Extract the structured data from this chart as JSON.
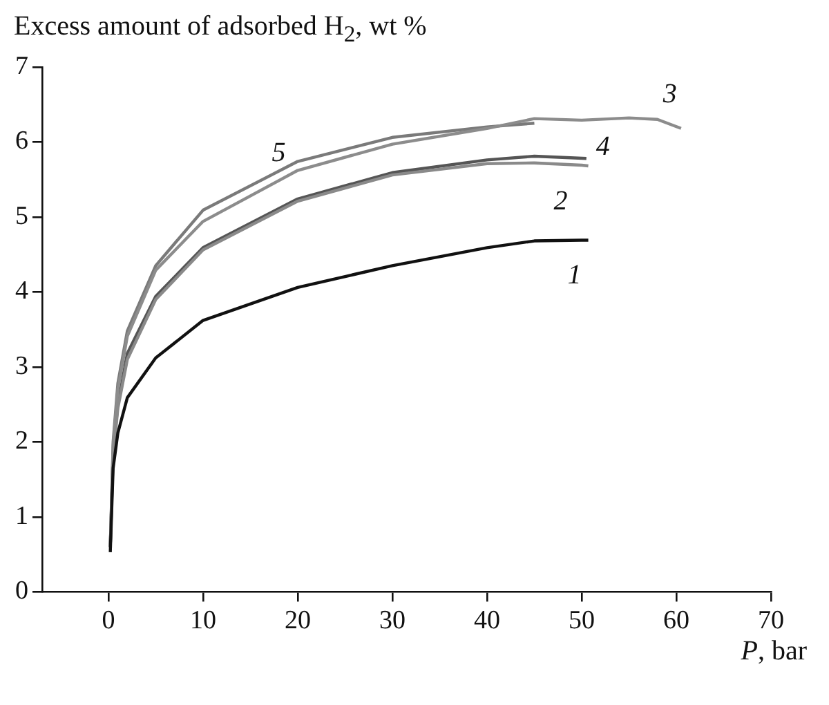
{
  "chart_data": {
    "type": "line",
    "ylabel": "Excess amount of adsorbed H$_{2}$, wt %",
    "xlabel": "P, bar",
    "xlim": [
      -7,
      70
    ],
    "xticks": [
      0,
      10,
      20,
      30,
      40,
      50,
      60,
      70
    ],
    "ylim": [
      0,
      7
    ],
    "yticks": [
      0,
      1,
      2,
      3,
      4,
      5,
      6,
      7
    ],
    "grid": false,
    "legend": false,
    "marker": "none",
    "line_style": "solid",
    "series": [
      {
        "name": "1",
        "color": "#111111",
        "x": [
          0.2,
          0.5,
          1,
          2,
          5,
          10,
          20,
          30,
          40,
          45,
          50,
          50.7
        ],
        "values": [
          0.53,
          1.65,
          2.12,
          2.59,
          3.12,
          3.62,
          4.06,
          4.35,
          4.59,
          4.68,
          4.69,
          4.69
        ]
      },
      {
        "name": "2",
        "color": "#8a8a8a",
        "x": [
          0.2,
          0.5,
          1,
          2,
          5,
          10,
          20,
          30,
          40,
          45,
          50,
          50.7
        ],
        "values": [
          0.6,
          1.8,
          2.45,
          3.1,
          3.9,
          4.56,
          5.21,
          5.56,
          5.71,
          5.72,
          5.69,
          5.68
        ]
      },
      {
        "name": "3",
        "color": "#8c8c8c",
        "x": [
          0.2,
          0.5,
          1,
          2,
          5,
          10,
          20,
          30,
          40,
          45,
          50,
          55,
          58,
          60.5
        ],
        "values": [
          0.6,
          1.94,
          2.7,
          3.41,
          4.29,
          4.94,
          5.62,
          5.97,
          6.18,
          6.31,
          6.29,
          6.32,
          6.3,
          6.18
        ]
      },
      {
        "name": "4",
        "color": "#555555",
        "x": [
          0.2,
          0.5,
          1,
          2,
          5,
          10,
          20,
          30,
          40,
          45,
          50.5
        ],
        "values": [
          0.6,
          1.85,
          2.5,
          3.18,
          3.94,
          4.59,
          5.24,
          5.59,
          5.76,
          5.81,
          5.78
        ]
      },
      {
        "name": "5",
        "color": "#7a7a7a",
        "x": [
          0.2,
          0.5,
          1,
          2,
          5,
          10,
          20,
          30,
          40,
          45
        ],
        "values": [
          0.6,
          2.0,
          2.78,
          3.48,
          4.35,
          5.09,
          5.74,
          6.06,
          6.2,
          6.25
        ]
      }
    ]
  }
}
